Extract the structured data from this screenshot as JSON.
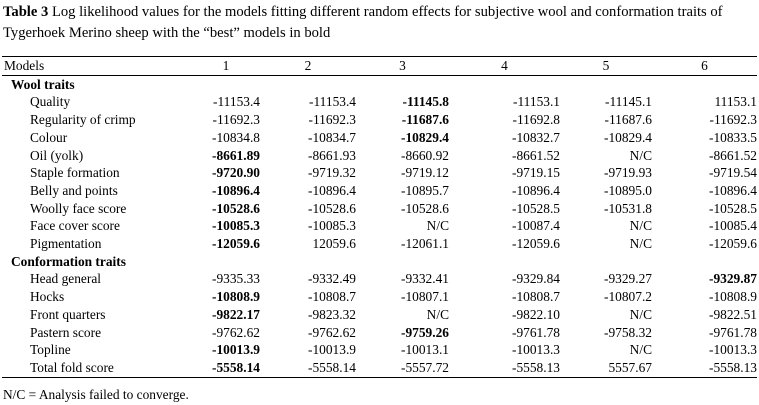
{
  "caption": {
    "label": "Table 3",
    "text": " Log likelihood values for the models fitting different random effects for subjective wool and conformation traits of Tygerhoek Merino sheep with the “best” models in bold"
  },
  "table": {
    "headers": [
      "Models",
      "1",
      "2",
      "3",
      "4",
      "5",
      "6"
    ],
    "sections": [
      {
        "title": "Wool traits",
        "rows": [
          {
            "label": "Quality",
            "values": [
              "-11153.4",
              "-11153.4",
              "-11145.8",
              "-11153.1",
              "-11145.1",
              "11153.1"
            ],
            "best": [
              false,
              false,
              true,
              false,
              false,
              false
            ]
          },
          {
            "label": "Regularity of crimp",
            "values": [
              "-11692.3",
              "-11692.3",
              "-11687.6",
              "-11692.8",
              "-11687.6",
              "-11692.3"
            ],
            "best": [
              false,
              false,
              true,
              false,
              false,
              false
            ]
          },
          {
            "label": "Colour",
            "values": [
              "-10834.8",
              "-10834.7",
              "-10829.4",
              "-10832.7",
              "-10829.4",
              "-10833.5"
            ],
            "best": [
              false,
              false,
              true,
              false,
              false,
              false
            ]
          },
          {
            "label": "Oil (yolk)",
            "values": [
              "-8661.89",
              "-8661.93",
              "-8660.92",
              "-8661.52",
              "N/C",
              "-8661.52"
            ],
            "best": [
              true,
              false,
              false,
              false,
              false,
              false
            ]
          },
          {
            "label": "Staple formation",
            "values": [
              "-9720.90",
              "-9719.32",
              "-9719.12",
              "-9719.15",
              "-9719.93",
              "-9719.54"
            ],
            "best": [
              true,
              false,
              false,
              false,
              false,
              false
            ]
          },
          {
            "label": "Belly and points",
            "values": [
              "-10896.4",
              "-10896.4",
              "-10895.7",
              "-10896.4",
              "-10895.0",
              "-10896.4"
            ],
            "best": [
              true,
              false,
              false,
              false,
              false,
              false
            ]
          },
          {
            "label": "Woolly face score",
            "values": [
              "-10528.6",
              "-10528.6",
              "-10528.6",
              "-10528.5",
              "-10531.8",
              "-10528.5"
            ],
            "best": [
              true,
              false,
              false,
              false,
              false,
              false
            ]
          },
          {
            "label": "Face cover score",
            "values": [
              "-10085.3",
              "-10085.3",
              "N/C",
              "-10087.4",
              "N/C",
              "-10085.4"
            ],
            "best": [
              true,
              false,
              false,
              false,
              false,
              false
            ]
          },
          {
            "label": "Pigmentation",
            "values": [
              "-12059.6",
              "12059.6",
              "-12061.1",
              "-12059.6",
              "N/C",
              "-12059.6"
            ],
            "best": [
              true,
              false,
              false,
              false,
              false,
              false
            ]
          }
        ]
      },
      {
        "title": "Conformation traits",
        "rows": [
          {
            "label": "Head general",
            "values": [
              "-9335.33",
              "-9332.49",
              "-9332.41",
              "-9329.84",
              "-9329.27",
              "-9329.87"
            ],
            "best": [
              false,
              false,
              false,
              false,
              false,
              true
            ]
          },
          {
            "label": "Hocks",
            "values": [
              "-10808.9",
              "-10808.7",
              "-10807.1",
              "-10808.7",
              "-10807.2",
              "-10808.9"
            ],
            "best": [
              true,
              false,
              false,
              false,
              false,
              false
            ]
          },
          {
            "label": "Front quarters",
            "values": [
              "-9822.17",
              "-9823.32",
              "N/C",
              "-9822.10",
              "N/C",
              "-9822.51"
            ],
            "best": [
              true,
              false,
              false,
              false,
              false,
              false
            ]
          },
          {
            "label": "Pastern score",
            "values": [
              "-9762.62",
              "-9762.62",
              "-9759.26",
              "-9761.78",
              "-9758.32",
              "-9761.78"
            ],
            "best": [
              false,
              false,
              true,
              false,
              false,
              false
            ]
          },
          {
            "label": "Topline",
            "values": [
              "-10013.9",
              "-10013.9",
              "-10013.1",
              "-10013.3",
              "N/C",
              "-10013.3"
            ],
            "best": [
              true,
              false,
              false,
              false,
              false,
              false
            ]
          },
          {
            "label": "Total fold score",
            "values": [
              "-5558.14",
              "-5558.14",
              "-5557.72",
              "-5558.13",
              "5557.67",
              "-5558.13"
            ],
            "best": [
              true,
              false,
              false,
              false,
              false,
              false
            ]
          }
        ]
      }
    ]
  },
  "footnote": "N/C = Analysis failed to converge."
}
